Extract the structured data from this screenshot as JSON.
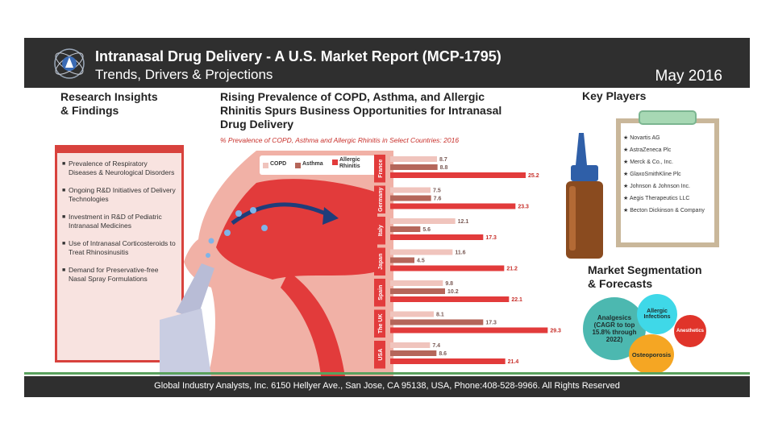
{
  "header": {
    "title": "Intranasal Drug Delivery - A U.S. Market Report (MCP-1795)",
    "subtitle": "Trends, Drivers & Projections",
    "date": "May 2016"
  },
  "insights": {
    "heading_line1": "Research Insights",
    "heading_line2": "& Findings",
    "items": [
      "Prevalence of Respiratory Diseases & Neurological Disorders",
      "Ongoing R&D Initiatives of Delivery Technologies",
      "Investment in R&D of Pediatric Intranasal Medicines",
      "Use of Intranasal Corticosteroids to Treat Rhinosinusitis",
      "Demand for Preservative-free Nasal Spray Formulations"
    ]
  },
  "chart_section": {
    "heading_line1": "Rising Prevalence of COPD, Asthma, and Allergic",
    "heading_line2": "Rhinitis Spurs Business Opportunities for Intranasal",
    "heading_line3": "Drug Delivery"
  },
  "chart_data": {
    "type": "bar",
    "orientation": "horizontal",
    "title": "% Prevalence of COPD, Asthma and Allergic Rhinitis in Select Countries: 2016",
    "categories": [
      "France",
      "Germany",
      "Italy",
      "Japan",
      "Spain",
      "The UK",
      "USA"
    ],
    "series": [
      {
        "name": "COPD",
        "color": "#f0c4bd",
        "values": [
          8.7,
          7.5,
          12.1,
          11.6,
          9.8,
          8.1,
          7.4
        ]
      },
      {
        "name": "Asthma",
        "color": "#b5665a",
        "values": [
          8.8,
          7.6,
          5.6,
          4.5,
          10.2,
          17.3,
          8.6
        ]
      },
      {
        "name": "Allergic Rhinitis",
        "color": "#e23b3b",
        "values": [
          25.2,
          23.3,
          17.3,
          21.2,
          22.1,
          29.3,
          21.4
        ]
      }
    ],
    "xlim": [
      0,
      30
    ],
    "legend_position": "top-left"
  },
  "key_players": {
    "heading": "Key Players",
    "items": [
      "Novartis AG",
      "AstraZeneca Plc",
      "Merck & Co., Inc.",
      "GlaxoSmithKline Plc",
      "Johnson & Johnson Inc.",
      "Aegis Therapeutics LLC",
      "Becton Dickinson & Company"
    ]
  },
  "segmentation": {
    "heading_line1": "Market Segmentation",
    "heading_line2": "& Forecasts",
    "bubbles": [
      {
        "label": "Analgesics (CAGR to top 15.8% through 2022)",
        "color": "#4cb8b0"
      },
      {
        "label": "Allergic Infections",
        "color": "#3fd8e8"
      },
      {
        "label": "Anesthetics",
        "color": "#e0342a"
      },
      {
        "label": "Osteoporosis",
        "color": "#f5a623"
      }
    ]
  },
  "footer": {
    "text": "Global Industry Analysts, Inc. 6150 Hellyer Ave., San Jose, CA 95138, USA, Phone:408-528-9966. All Rights Reserved"
  },
  "colors": {
    "header_bg": "#2f2f2f",
    "accent_red": "#d8423d",
    "footer_line": "#5aa15e"
  }
}
